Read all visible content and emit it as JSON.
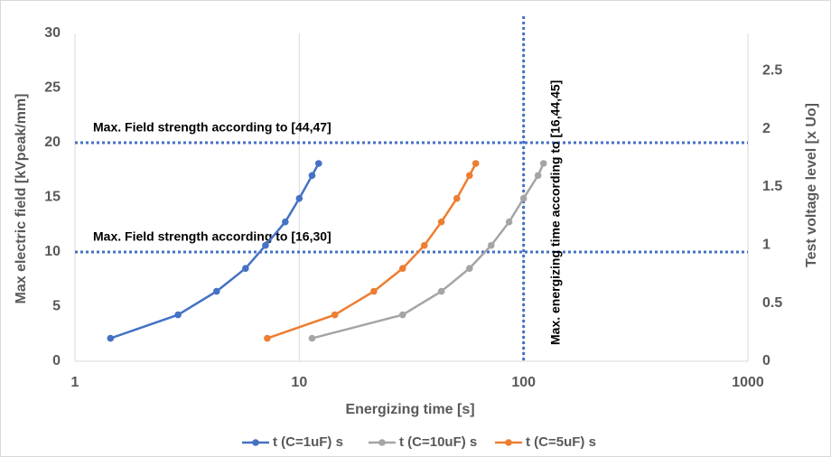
{
  "chart_data": {
    "type": "line",
    "x_label": "Energizing time [s]",
    "y_label": "Max electric field [kVpeak/mm]",
    "y2_label": "Test voltage level [x Uo]",
    "xscale": "log",
    "xlim": [
      1,
      1000
    ],
    "xticks": [
      1,
      10,
      100,
      1000
    ],
    "ylim": [
      0,
      30
    ],
    "yticks": [
      0,
      5,
      10,
      15,
      20,
      25,
      30
    ],
    "y2lim": [
      0,
      2.82
    ],
    "y2ticks": [
      0,
      0.5,
      1,
      1.5,
      2,
      2.5
    ],
    "grid": "x",
    "legend": "bottom",
    "series": [
      {
        "name": "t (C=1uF) s",
        "color": "#4472c4",
        "x": [
          1.44,
          2.88,
          4.28,
          5.76,
          7.07,
          8.66,
          10.0,
          11.4,
          12.2
        ],
        "values": [
          2.1,
          4.25,
          6.4,
          8.5,
          10.6,
          12.75,
          14.9,
          17,
          18.1
        ]
      },
      {
        "name": "t (C=10uF) s",
        "color": "#a5a5a5",
        "x": [
          11.4,
          28.9,
          43,
          57.4,
          71.7,
          86.2,
          100,
          116,
          122.7
        ],
        "values": [
          2.1,
          4.25,
          6.4,
          8.5,
          10.6,
          12.75,
          14.9,
          17,
          18.1
        ]
      },
      {
        "name": "t (C=5uF) s",
        "color": "#ed7d31",
        "x": [
          7.2,
          14.4,
          21.5,
          28.9,
          36.1,
          43,
          50.4,
          57.4,
          61.2
        ],
        "values": [
          2.1,
          4.25,
          6.4,
          8.5,
          10.6,
          12.75,
          14.9,
          17,
          18.1
        ]
      }
    ],
    "reference_lines": [
      {
        "axis": "y",
        "value": 20,
        "label": "Max. Field strength according to [44,47]",
        "color": "#4472c4"
      },
      {
        "axis": "y",
        "value": 10,
        "label": "Max. Field strength according to [16,30]",
        "color": "#4472c4"
      },
      {
        "axis": "x",
        "value": 100,
        "label": "Max. energizing time according to [16,44,45]",
        "color": "#4472c4"
      }
    ]
  }
}
